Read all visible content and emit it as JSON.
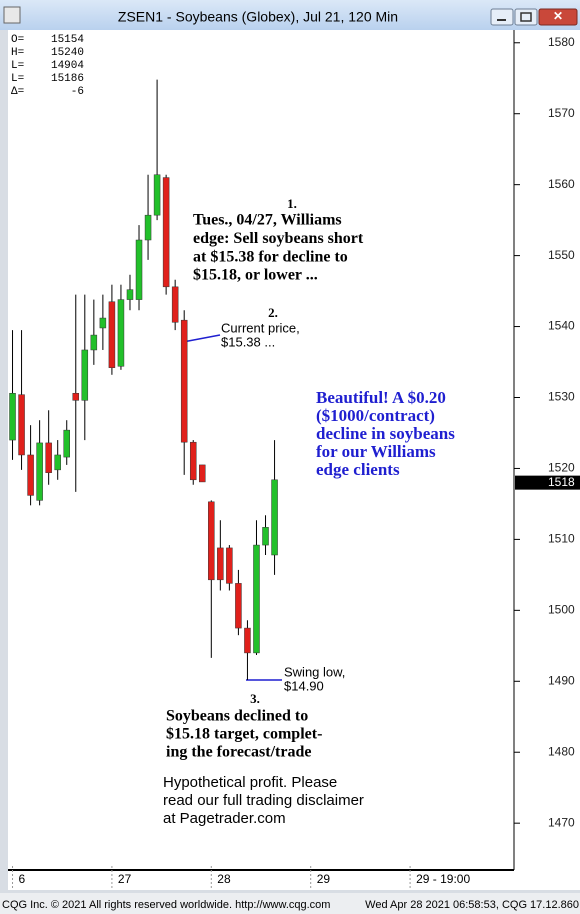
{
  "chart_data": {
    "type": "candlestick",
    "title": "ZSEN1 - Soybeans (Globex), Jul 21, 120 Min",
    "info": [
      {
        "label": "O=",
        "value": 15154
      },
      {
        "label": "H=",
        "value": 15240
      },
      {
        "label": "L=",
        "value": 14904
      },
      {
        "label": "L=",
        "value": 15186
      },
      {
        "label": "Δ=",
        "value": -6
      }
    ],
    "x": [
      0,
      1,
      2,
      3,
      4,
      5,
      6,
      7,
      8,
      9,
      10,
      11,
      12,
      13,
      14,
      15,
      16,
      17,
      18,
      19,
      20,
      21,
      22,
      23,
      24,
      25,
      26,
      27,
      28,
      29
    ],
    "open": [
      1524.0,
      1530.4,
      1521.9,
      1515.5,
      1523.6,
      1519.8,
      1521.6,
      1530.6,
      1529.6,
      1536.7,
      1539.8,
      1543.5,
      1534.4,
      1543.8,
      1543.8,
      1552.2,
      1555.7,
      1561.0,
      1545.6,
      1540.9,
      1523.7,
      1520.5,
      1515.3,
      1508.8,
      1508.8,
      1503.8,
      1497.5,
      1494.0,
      1509.2,
      1507.8
    ],
    "high": [
      1539.5,
      1539.5,
      1526.1,
      1526.8,
      1528.2,
      1524.0,
      1526.8,
      1544.5,
      1544.5,
      1543.8,
      1544.5,
      1545.9,
      1545.9,
      1547.3,
      1554.3,
      1561.4,
      1574.8,
      1561.4,
      1546.6,
      1542.3,
      1524.0,
      1520.5,
      1515.5,
      1512.7,
      1509.2,
      1505.7,
      1498.6,
      1512.7,
      1513.4,
      1524.0
    ],
    "low": [
      1521.2,
      1519.8,
      1514.8,
      1514.8,
      1517.7,
      1518.4,
      1520.5,
      1516.7,
      1524.0,
      1534.6,
      1536.7,
      1533.2,
      1533.9,
      1542.3,
      1542.3,
      1549.4,
      1555.0,
      1544.5,
      1539.5,
      1519.1,
      1517.7,
      1518.1,
      1493.3,
      1502.8,
      1502.8,
      1496.5,
      1490.2,
      1493.7,
      1507.8,
      1505.0
    ],
    "close": [
      1530.6,
      1521.9,
      1516.2,
      1523.6,
      1519.4,
      1521.9,
      1525.4,
      1529.6,
      1536.7,
      1538.8,
      1541.2,
      1534.2,
      1543.8,
      1545.2,
      1552.2,
      1555.7,
      1561.4,
      1545.6,
      1540.6,
      1523.7,
      1518.4,
      1518.1,
      1504.3,
      1504.3,
      1503.8,
      1497.5,
      1494.0,
      1509.2,
      1511.7,
      1518.4
    ],
    "up_color": "#22c02a",
    "down_color": "#e0201b",
    "xlim": [
      -0.5,
      55.5
    ],
    "xticks": [
      {
        "value": 0,
        "label": "6"
      },
      {
        "value": 11,
        "label": "27"
      },
      {
        "value": 22,
        "label": "28"
      },
      {
        "value": 33,
        "label": "29"
      },
      {
        "value": 44,
        "label": "29 - 19:00"
      }
    ],
    "ylim": [
      1463.4,
      1581.8
    ],
    "yticks": [
      1470,
      1480,
      1490,
      1500,
      1510,
      1520,
      1530,
      1540,
      1550,
      1560,
      1570,
      1580
    ],
    "last_price": 1518,
    "annotations": [
      {
        "number": "1.",
        "lines": [
          "Tues., 04/27, Williams",
          "edge: Sell soybeans short",
          "at $15.38 for decline to",
          "$15.18, or lower ..."
        ]
      },
      {
        "number": "2.",
        "lines": [
          "Current price,",
          "$15.38 ..."
        ]
      },
      {
        "lines": [
          "Beautiful! A $0.20",
          "($1000/contract)",
          "decline in soybeans",
          "for our Williams",
          "edge clients"
        ]
      },
      {
        "lines": [
          "Swing low,",
          "$14.90"
        ]
      },
      {
        "number": "3.",
        "lines": [
          "Soybeans declined to",
          "$15.18 target, complet-",
          "ing the forecast/trade"
        ]
      },
      {
        "lines": [
          "Hypothetical profit. Please",
          "read our full trading disclaimer",
          "at Pagetrader.com"
        ]
      }
    ]
  },
  "footer": {
    "left": "CQG Inc. © 2021 All rights reserved worldwide. http://www.cqg.com",
    "right": "Wed Apr 28 2021 06:58:53, CQG 17.12.860"
  }
}
